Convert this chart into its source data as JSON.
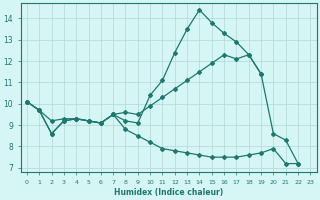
{
  "xlabel": "Humidex (Indice chaleur)",
  "bg_color": "#d6f5f5",
  "grid_color": "#b0d8d8",
  "line_color": "#1a7a6e",
  "xlim": [
    -0.5,
    23.5
  ],
  "ylim": [
    6.8,
    14.7
  ],
  "yticks": [
    7,
    8,
    9,
    10,
    11,
    12,
    13,
    14
  ],
  "xticks": [
    0,
    1,
    2,
    3,
    4,
    5,
    6,
    7,
    8,
    9,
    10,
    11,
    12,
    13,
    14,
    15,
    16,
    17,
    18,
    19,
    20,
    21,
    22,
    23
  ],
  "curve_peak_x": [
    0,
    1,
    2,
    3,
    4,
    5,
    6,
    7,
    8,
    9,
    10,
    11,
    12,
    13,
    14,
    15,
    16,
    17,
    18,
    19,
    20,
    21,
    22
  ],
  "curve_peak_y": [
    10.1,
    9.7,
    8.6,
    9.2,
    9.3,
    9.2,
    9.1,
    9.5,
    9.2,
    9.1,
    10.4,
    11.1,
    12.4,
    13.5,
    14.4,
    13.8,
    13.3,
    12.9,
    12.3,
    11.4,
    8.6,
    8.3,
    7.2
  ],
  "curve_rise_x": [
    0,
    1,
    2,
    3,
    4,
    5,
    6,
    7,
    8,
    9,
    10,
    11,
    12,
    13,
    14,
    15,
    16,
    17,
    18,
    19
  ],
  "curve_rise_y": [
    10.1,
    9.7,
    9.2,
    9.3,
    9.3,
    9.2,
    9.1,
    9.5,
    9.6,
    9.5,
    9.9,
    10.3,
    10.7,
    11.1,
    11.5,
    11.9,
    12.3,
    12.1,
    12.3,
    11.4
  ],
  "curve_low_x": [
    0,
    1,
    2,
    3,
    4,
    5,
    6,
    7,
    8,
    9,
    10,
    11,
    12,
    13,
    14,
    15,
    16,
    17,
    18,
    19,
    20,
    21,
    22
  ],
  "curve_low_y": [
    10.1,
    9.7,
    8.6,
    9.2,
    9.3,
    9.2,
    9.1,
    9.5,
    8.8,
    8.5,
    8.2,
    7.9,
    7.8,
    7.7,
    7.6,
    7.5,
    7.5,
    7.5,
    7.6,
    7.7,
    7.9,
    7.2,
    7.2
  ]
}
